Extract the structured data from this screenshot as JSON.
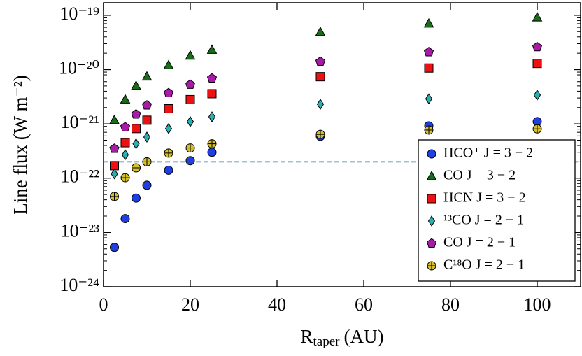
{
  "chart_data": {
    "type": "scatter",
    "xlabel": [
      "R",
      "taper",
      "(AU)"
    ],
    "ylabel": "Line flux (W m⁻²)",
    "x": [
      2.5,
      5,
      7.5,
      10,
      15,
      20,
      25,
      50,
      75,
      100
    ],
    "xlim": [
      0,
      110
    ],
    "xticks": [
      0,
      20,
      40,
      60,
      80,
      100
    ],
    "ylim": [
      1e-24,
      1.7e-19
    ],
    "log_y": true,
    "yticks": [
      {
        "value": 1e-24,
        "label": "10⁻²⁴"
      },
      {
        "value": 1e-23,
        "label": "10⁻²³"
      },
      {
        "value": 1e-22,
        "label": "10⁻²²"
      },
      {
        "value": 1e-21,
        "label": "10⁻²¹"
      },
      {
        "value": 1e-20,
        "label": "10⁻²⁰"
      },
      {
        "value": 1e-19,
        "label": "10⁻¹⁹"
      }
    ],
    "hline": {
      "value": 2e-22,
      "color": "#3a8ac4"
    },
    "legend": "lower right",
    "series": [
      {
        "name": "HCO⁺ J = 3 − 2",
        "marker": "circle",
        "color": "#1f3fe0",
        "values": [
          5.3e-24,
          1.8e-23,
          4.3e-23,
          7.4e-23,
          1.4e-22,
          2.1e-22,
          3e-22,
          5.9e-22,
          9.2e-22,
          1.1e-21
        ]
      },
      {
        "name": "CO J = 3 − 2",
        "marker": "triangle",
        "color": "#1a6b1a",
        "values": [
          1.17e-21,
          2.8e-21,
          5e-21,
          7.4e-21,
          1.2e-20,
          1.8e-20,
          2.3e-20,
          4.9e-20,
          7e-20,
          9.1e-20
        ]
      },
      {
        "name": "HCN J = 3 − 2",
        "marker": "square",
        "color": "#ee1111",
        "values": [
          1.7e-22,
          4.5e-22,
          8.2e-22,
          1.17e-21,
          1.9e-21,
          2.8e-21,
          3.6e-21,
          7.4e-21,
          1.07e-20,
          1.3e-20
        ]
      },
      {
        "name": "¹³CO J = 2 − 1",
        "marker": "diamond",
        "color": "#2ab0b0",
        "values": [
          1.2e-22,
          2.7e-22,
          4.3e-22,
          5.7e-22,
          8.2e-22,
          1.1e-21,
          1.35e-21,
          2.3e-21,
          2.9e-21,
          3.4e-21
        ]
      },
      {
        "name": "CO J = 2 − 1",
        "marker": "pentagon",
        "color": "#aa1aaa",
        "values": [
          3.5e-22,
          8.7e-22,
          1.5e-21,
          2.2e-21,
          3.7e-21,
          5.3e-21,
          6.9e-21,
          1.4e-20,
          2.1e-20,
          2.6e-20
        ]
      },
      {
        "name": "C¹⁸O J = 2 − 1",
        "marker": "circle-plus",
        "color": "#d4c02a",
        "values": [
          4.6e-23,
          1.02e-22,
          1.55e-22,
          2e-22,
          2.9e-22,
          3.6e-22,
          4.3e-22,
          6.4e-22,
          7.7e-22,
          8.1e-22
        ]
      }
    ]
  }
}
